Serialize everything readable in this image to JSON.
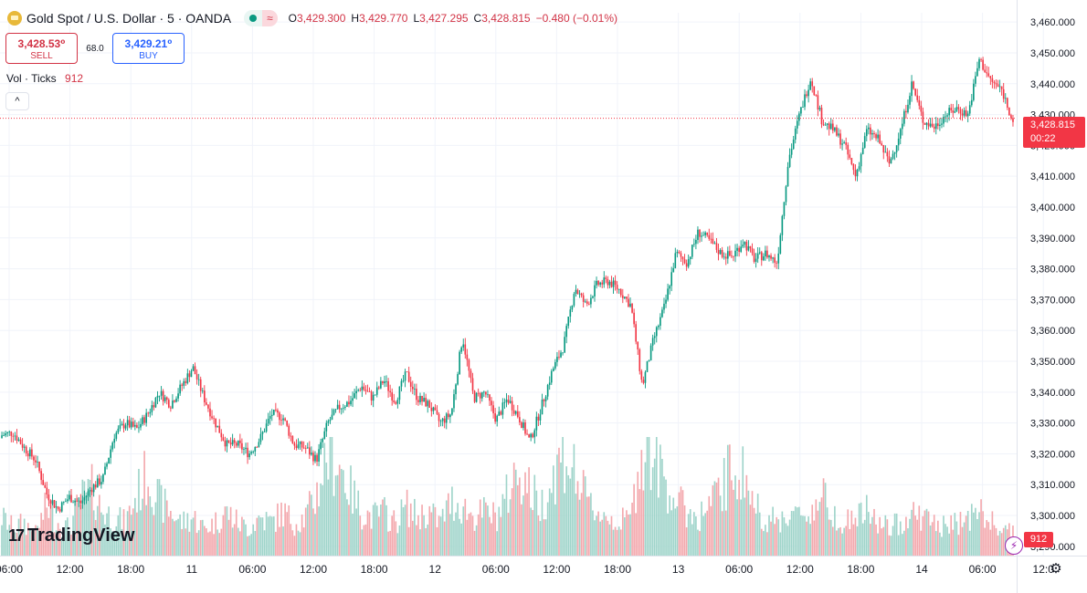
{
  "header": {
    "symbol": "Gold Spot / U.S. Dollar · 5 · OANDA",
    "wave_label": "≈",
    "ohlc": [
      {
        "k": "O",
        "v": "3,429.300"
      },
      {
        "k": "H",
        "v": "3,429.770"
      },
      {
        "k": "L",
        "v": "3,427.295"
      },
      {
        "k": "C",
        "v": "3,428.815"
      },
      {
        "k": "",
        "v": "−0.480 (−0.01%)"
      }
    ]
  },
  "trade": {
    "sell_price": "3,428.53⁰",
    "sell_label": "SELL",
    "spread": "68.0",
    "buy_price": "3,429.21⁰",
    "buy_label": "BUY"
  },
  "volume_legend": {
    "label": "Vol · Ticks",
    "value": "912"
  },
  "collapse_glyph": "^",
  "brand": {
    "mark": "17",
    "name": "TradingView"
  },
  "last_price": {
    "price": "3,428.815",
    "countdown": "00:22"
  },
  "last_volume": "912",
  "colors": {
    "up": "#089981",
    "down": "#f23645",
    "up_vol": "#9fd4ca",
    "down_vol": "#f3a8ad",
    "grid": "#f0f3fa"
  },
  "icons": {
    "alert": "bolt-icon",
    "settings": "gear-icon"
  },
  "chart_data": {
    "type": "candlestick",
    "interval_minutes": 5,
    "y_ticks": [
      "3,290.000",
      "3,300.000",
      "3,310.000",
      "3,320.000",
      "3,330.000",
      "3,340.000",
      "3,350.000",
      "3,360.000",
      "3,370.000",
      "3,380.000",
      "3,390.000",
      "3,400.000",
      "3,410.000",
      "3,420.000",
      "3,430.000",
      "3,440.000",
      "3,450.000",
      "3,460.000"
    ],
    "ylim": [
      3287,
      3463
    ],
    "x_ticks": [
      "06:00",
      "12:00",
      "18:00",
      "11",
      "06:00",
      "12:00",
      "18:00",
      "12",
      "06:00",
      "12:00",
      "18:00",
      "13",
      "06:00",
      "12:00",
      "18:00",
      "14",
      "06:00",
      "12:0"
    ],
    "last_close": 3428.815,
    "close_path": [
      3326,
      3327,
      3322,
      3318,
      3307,
      3302,
      3306,
      3304,
      3309,
      3312,
      3326,
      3330,
      3328,
      3333,
      3340,
      3336,
      3342,
      3348,
      3338,
      3330,
      3323,
      3323,
      3320,
      3325,
      3333,
      3332,
      3323,
      3322,
      3318,
      3330,
      3335,
      3337,
      3342,
      3338,
      3344,
      3337,
      3346,
      3338,
      3336,
      3330,
      3333,
      3358,
      3338,
      3340,
      3331,
      3338,
      3332,
      3324,
      3335,
      3347,
      3355,
      3374,
      3368,
      3375,
      3376,
      3373,
      3368,
      3342,
      3357,
      3368,
      3385,
      3382,
      3392,
      3389,
      3385,
      3384,
      3389,
      3383,
      3385,
      3382,
      3415,
      3430,
      3442,
      3428,
      3425,
      3420,
      3410,
      3425,
      3422,
      3414,
      3425,
      3440,
      3428,
      3426,
      3430,
      3432,
      3430,
      3448,
      3441,
      3438,
      3428
    ],
    "volume_path": [
      0.35,
      0.25,
      0.3,
      0.2,
      0.45,
      0.3,
      0.25,
      0.5,
      0.6,
      0.4,
      0.35,
      0.3,
      0.55,
      0.75,
      0.5,
      0.4,
      0.3,
      0.35,
      0.25,
      0.3,
      0.4,
      0.3,
      0.25,
      0.35,
      0.3,
      0.4,
      0.3,
      0.35,
      0.55,
      0.95,
      0.85,
      0.6,
      0.4,
      0.35,
      0.4,
      0.3,
      0.45,
      0.35,
      0.4,
      0.3,
      0.5,
      0.45,
      0.35,
      0.4,
      0.35,
      0.55,
      0.8,
      0.6,
      0.45,
      0.7,
      0.95,
      0.75,
      0.5,
      0.4,
      0.35,
      0.3,
      0.35,
      1.0,
      0.9,
      0.7,
      0.5,
      0.4,
      0.35,
      0.45,
      0.6,
      0.8,
      0.75,
      0.45,
      0.35,
      0.3,
      0.4,
      0.35,
      0.4,
      0.55,
      0.4,
      0.3,
      0.35,
      0.4,
      0.3,
      0.25,
      0.3,
      0.4,
      0.35,
      0.3,
      0.25,
      0.3,
      0.35,
      0.4,
      0.3,
      0.25,
      0.2
    ]
  }
}
